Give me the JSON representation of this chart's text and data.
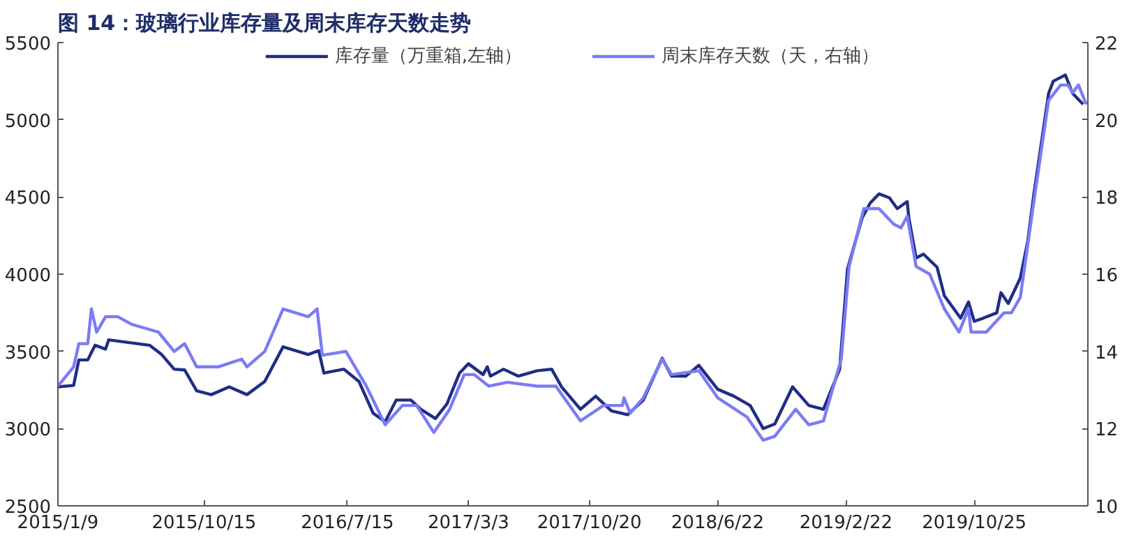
{
  "chart_data": {
    "type": "line",
    "title": "图 14：玻璃行业库存量及周末库存天数走势",
    "xlim": [
      "2015-01-09",
      "2020-05-29"
    ],
    "xticks": [
      {
        "value": "2015-01-09",
        "label": "2015/1/9"
      },
      {
        "value": "2015-10-15",
        "label": "2015/10/15"
      },
      {
        "value": "2016-07-15",
        "label": "2016/7/15"
      },
      {
        "value": "2017-03-03",
        "label": "2017/3/3"
      },
      {
        "value": "2017-10-20",
        "label": "2017/10/20"
      },
      {
        "value": "2018-06-22",
        "label": "2018/6/22"
      },
      {
        "value": "2019-02-22",
        "label": "2019/2/22"
      },
      {
        "value": "2019-10-25",
        "label": "2019/10/25"
      }
    ],
    "ylim": [
      2500,
      5500
    ],
    "yticks": [
      2500,
      3000,
      3500,
      4000,
      4500,
      5000,
      5500
    ],
    "y2lim": [
      10,
      22
    ],
    "y2ticks": [
      10,
      12,
      14,
      16,
      18,
      20,
      22
    ],
    "grid": false,
    "legend": "top",
    "series": [
      {
        "name": "库存量（万重箱,左轴）",
        "color": "#1f2d86",
        "x": [
          "2015-01-09",
          "2015-02-08",
          "2015-02-18",
          "2015-03-07",
          "2015-03-21",
          "2015-04-10",
          "2015-04-16",
          "2015-07-03",
          "2015-07-26",
          "2015-08-19",
          "2015-09-08",
          "2015-10-01",
          "2015-10-29",
          "2015-12-02",
          "2016-01-05",
          "2016-02-08",
          "2016-03-14",
          "2016-05-01",
          "2016-05-21",
          "2016-05-31",
          "2016-07-08",
          "2016-08-06",
          "2016-09-02",
          "2016-09-25",
          "2016-10-16",
          "2016-11-13",
          "2016-12-02",
          "2016-12-30",
          "2017-01-21",
          "2017-02-14",
          "2017-03-03",
          "2017-03-31",
          "2017-04-08",
          "2017-04-14",
          "2017-05-09",
          "2017-06-06",
          "2017-07-12",
          "2017-08-09",
          "2017-08-28",
          "2017-10-03",
          "2017-11-01",
          "2017-12-01",
          "2018-01-01",
          "2018-01-31",
          "2018-03-08",
          "2018-03-26",
          "2018-04-22",
          "2018-05-17",
          "2018-06-22",
          "2018-07-23",
          "2018-08-23",
          "2018-09-17",
          "2018-10-09",
          "2018-11-12",
          "2018-12-13",
          "2019-01-10",
          "2019-02-10",
          "2019-02-25",
          "2019-03-25",
          "2019-04-09",
          "2019-04-26",
          "2019-05-16",
          "2019-05-31",
          "2019-06-19",
          "2019-06-22",
          "2019-07-06",
          "2019-07-20",
          "2019-08-15",
          "2019-08-29",
          "2019-09-29",
          "2019-10-14",
          "2019-10-25",
          "2019-11-11",
          "2019-12-07",
          "2019-12-15",
          "2019-12-29",
          "2020-01-21",
          "2020-02-04",
          "2020-02-16",
          "2020-03-15",
          "2020-03-24",
          "2020-04-16",
          "2020-04-30",
          "2020-05-20"
        ],
        "values": [
          3270,
          3280,
          3445,
          3445,
          3540,
          3515,
          3575,
          3540,
          3480,
          3385,
          3380,
          3245,
          3220,
          3270,
          3220,
          3305,
          3530,
          3480,
          3505,
          3360,
          3385,
          3305,
          3100,
          3045,
          3185,
          3185,
          3125,
          3065,
          3160,
          3360,
          3420,
          3350,
          3400,
          3340,
          3385,
          3340,
          3375,
          3385,
          3270,
          3125,
          3210,
          3115,
          3090,
          3185,
          3455,
          3340,
          3340,
          3410,
          3255,
          3210,
          3150,
          3000,
          3030,
          3270,
          3150,
          3125,
          3385,
          4035,
          4365,
          4460,
          4520,
          4495,
          4425,
          4470,
          4365,
          4105,
          4130,
          4045,
          3860,
          3715,
          3820,
          3695,
          3715,
          3750,
          3880,
          3810,
          3975,
          4210,
          4520,
          5170,
          5250,
          5290,
          5170,
          5100
        ]
      },
      {
        "name": "周末库存天数（天，右轴）",
        "color": "#7b7bf5",
        "axis": "y2",
        "x": [
          "2015-01-09",
          "2015-02-08",
          "2015-02-18",
          "2015-03-07",
          "2015-03-14",
          "2015-03-24",
          "2015-04-10",
          "2015-05-03",
          "2015-05-30",
          "2015-07-20",
          "2015-08-19",
          "2015-09-08",
          "2015-10-01",
          "2015-11-11",
          "2015-12-26",
          "2016-01-05",
          "2016-02-08",
          "2016-03-14",
          "2016-05-01",
          "2016-05-18",
          "2016-05-28",
          "2016-07-12",
          "2016-08-20",
          "2016-09-25",
          "2016-10-28",
          "2016-11-24",
          "2016-12-27",
          "2017-01-26",
          "2017-02-23",
          "2017-03-14",
          "2017-04-11",
          "2017-05-17",
          "2017-07-12",
          "2017-08-17",
          "2017-10-03",
          "2017-11-16",
          "2017-12-22",
          "2017-12-25",
          "2018-01-06",
          "2018-01-31",
          "2018-03-08",
          "2018-03-26",
          "2018-05-17",
          "2018-06-22",
          "2018-08-17",
          "2018-09-17",
          "2018-10-09",
          "2018-11-18",
          "2018-12-13",
          "2019-01-10",
          "2019-02-13",
          "2019-02-28",
          "2019-03-28",
          "2019-04-26",
          "2019-05-24",
          "2019-06-07",
          "2019-06-19",
          "2019-07-06",
          "2019-08-01",
          "2019-08-29",
          "2019-09-26",
          "2019-10-14",
          "2019-10-19",
          "2019-11-17",
          "2019-12-21",
          "2020-01-04",
          "2020-01-21",
          "2020-02-16",
          "2020-03-15",
          "2020-04-07",
          "2020-04-21",
          "2020-04-30",
          "2020-05-11",
          "2020-05-26"
        ],
        "values": [
          13.1,
          13.6,
          14.2,
          14.2,
          15.1,
          14.5,
          14.9,
          14.9,
          14.7,
          14.5,
          14.0,
          14.2,
          13.6,
          13.6,
          13.8,
          13.6,
          14.0,
          15.1,
          14.9,
          15.1,
          13.9,
          14.0,
          13.1,
          12.1,
          12.6,
          12.6,
          11.9,
          12.5,
          13.4,
          13.4,
          13.1,
          13.2,
          13.1,
          13.1,
          12.2,
          12.6,
          12.6,
          12.8,
          12.4,
          12.8,
          13.8,
          13.4,
          13.5,
          12.8,
          12.3,
          11.7,
          11.8,
          12.5,
          12.1,
          12.2,
          13.8,
          16.2,
          17.7,
          17.7,
          17.3,
          17.2,
          17.5,
          16.2,
          16.0,
          15.1,
          14.5,
          15.1,
          14.5,
          14.5,
          15.0,
          15.0,
          15.4,
          17.9,
          20.5,
          20.9,
          20.9,
          20.7,
          20.9,
          20.4
        ]
      }
    ]
  }
}
